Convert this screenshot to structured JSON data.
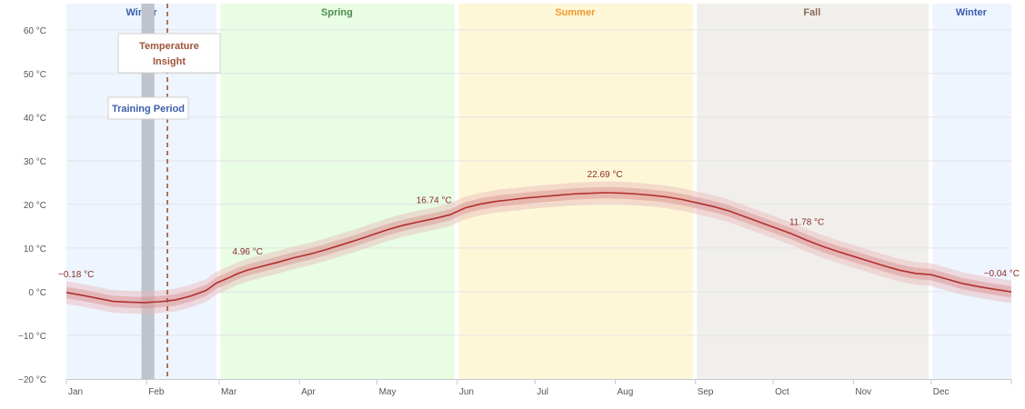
{
  "chart_data": {
    "type": "line",
    "title": "",
    "xlabel": "",
    "ylabel": "",
    "unit": "°C",
    "ylim": [
      -20,
      66
    ],
    "yticks": [
      -20,
      -10,
      0,
      10,
      20,
      30,
      40,
      50,
      60
    ],
    "ytick_labels": [
      "−20 °C",
      "−10 °C",
      "0 °C",
      "10 °C",
      "20 °C",
      "30 °C",
      "40 °C",
      "50 °C",
      "60 °C"
    ],
    "xlim": [
      0,
      365
    ],
    "months": [
      {
        "label": "Jan",
        "day": 0
      },
      {
        "label": "Feb",
        "day": 31
      },
      {
        "label": "Mar",
        "day": 59
      },
      {
        "label": "Apr",
        "day": 90
      },
      {
        "label": "May",
        "day": 120
      },
      {
        "label": "Jun",
        "day": 151
      },
      {
        "label": "Jul",
        "day": 181
      },
      {
        "label": "Aug",
        "day": 212
      },
      {
        "label": "Sep",
        "day": 243
      },
      {
        "label": "Oct",
        "day": 273
      },
      {
        "label": "Nov",
        "day": 304
      },
      {
        "label": "Dec",
        "day": 334
      }
    ],
    "seasons": [
      {
        "name": "Winter",
        "start": 0,
        "end": 58,
        "fill": "#eef5ff",
        "color": "#3b5eaa"
      },
      {
        "name": "Spring",
        "start": 59,
        "end": 150,
        "fill": "#e8fde4",
        "color": "#4f8a4f"
      },
      {
        "name": "Summer",
        "start": 151,
        "end": 242,
        "fill": "#fdf7d8",
        "color": "#f09a30"
      },
      {
        "name": "Fall",
        "start": 243,
        "end": 333,
        "fill": "#f1efec",
        "color": "#8a6a5a"
      },
      {
        "name": "Winter",
        "start": 334,
        "end": 365,
        "fill": "#eef5ff",
        "color": "#3b5eaa"
      }
    ],
    "training_period": {
      "label": "Training Period",
      "start": 29,
      "end": 34,
      "color": "#3b5eaa"
    },
    "insight_line": {
      "label_line1": "Temperature",
      "label_line2": "Insight",
      "day": 39,
      "color": "#a0533a"
    },
    "series": [
      {
        "name": "Temperature",
        "color": "#b03030",
        "band_inner": 1.3,
        "band_outer": 2.6,
        "points": [
          [
            0,
            -0.18
          ],
          [
            6,
            -0.8
          ],
          [
            12,
            -1.5
          ],
          [
            18,
            -2.2
          ],
          [
            24,
            -2.4
          ],
          [
            30,
            -2.5
          ],
          [
            36,
            -2.3
          ],
          [
            42,
            -1.9
          ],
          [
            48,
            -1.0
          ],
          [
            54,
            0.3
          ],
          [
            58,
            2.0
          ],
          [
            62,
            3.0
          ],
          [
            66,
            4.1
          ],
          [
            70,
            4.96
          ],
          [
            76,
            5.9
          ],
          [
            82,
            6.8
          ],
          [
            88,
            7.8
          ],
          [
            94,
            8.6
          ],
          [
            100,
            9.6
          ],
          [
            106,
            10.7
          ],
          [
            112,
            11.8
          ],
          [
            118,
            13.0
          ],
          [
            124,
            14.2
          ],
          [
            130,
            15.2
          ],
          [
            136,
            16.0
          ],
          [
            142,
            16.74
          ],
          [
            148,
            17.6
          ],
          [
            154,
            19.2
          ],
          [
            160,
            20.1
          ],
          [
            166,
            20.7
          ],
          [
            172,
            21.1
          ],
          [
            178,
            21.5
          ],
          [
            184,
            21.8
          ],
          [
            190,
            22.1
          ],
          [
            196,
            22.4
          ],
          [
            202,
            22.55
          ],
          [
            208,
            22.69
          ],
          [
            214,
            22.6
          ],
          [
            220,
            22.4
          ],
          [
            226,
            22.1
          ],
          [
            232,
            21.7
          ],
          [
            238,
            21.1
          ],
          [
            244,
            20.3
          ],
          [
            250,
            19.5
          ],
          [
            256,
            18.5
          ],
          [
            262,
            17.2
          ],
          [
            268,
            15.9
          ],
          [
            274,
            14.6
          ],
          [
            280,
            13.3
          ],
          [
            286,
            11.78
          ],
          [
            292,
            10.4
          ],
          [
            298,
            9.2
          ],
          [
            304,
            8.1
          ],
          [
            310,
            7.0
          ],
          [
            316,
            5.9
          ],
          [
            322,
            4.9
          ],
          [
            328,
            4.2
          ],
          [
            334,
            3.9
          ],
          [
            340,
            2.9
          ],
          [
            346,
            1.9
          ],
          [
            352,
            1.2
          ],
          [
            358,
            0.6
          ],
          [
            365,
            -0.04
          ]
        ]
      }
    ],
    "data_labels": [
      {
        "day": 0,
        "value": -0.18,
        "text": "−0.18 °C"
      },
      {
        "day": 70,
        "value": 4.96,
        "text": "4.96 °C"
      },
      {
        "day": 142,
        "value": 16.74,
        "text": "16.74 °C"
      },
      {
        "day": 208,
        "value": 22.69,
        "text": "22.69 °C"
      },
      {
        "day": 286,
        "value": 11.78,
        "text": "11.78 °C"
      },
      {
        "day": 365,
        "value": -0.04,
        "text": "−0.04 °C"
      }
    ]
  }
}
